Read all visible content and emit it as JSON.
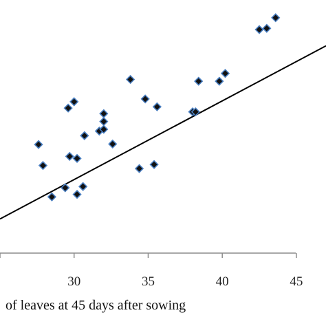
{
  "chart_data": {
    "type": "scatter",
    "xlabel": "of  leaves at 45 days after sowing",
    "ylabel": "",
    "x_ticks": [
      "30",
      "35",
      "40",
      "45"
    ],
    "xlim": [
      25,
      47
    ],
    "ylim": [
      0,
      100
    ],
    "grid": false,
    "marker_color": "#111111",
    "marker_edge_color": "#4a7fc1",
    "trend_color": "#000000",
    "trendline": {
      "x_start": 25,
      "y_start": 13.5,
      "x_end": 47,
      "y_end": 81.9
    },
    "series": [
      {
        "points": [
          [
            27.6,
            42.9
          ],
          [
            27.9,
            34.6
          ],
          [
            28.5,
            22.2
          ],
          [
            29.4,
            25.8
          ],
          [
            29.6,
            57.3
          ],
          [
            29.7,
            38.2
          ],
          [
            30.0,
            59.8
          ],
          [
            30.2,
            23.2
          ],
          [
            30.2,
            37.4
          ],
          [
            30.6,
            26.3
          ],
          [
            30.7,
            46.4
          ],
          [
            31.7,
            48.2
          ],
          [
            32.0,
            48.9
          ],
          [
            32.0,
            52.0
          ],
          [
            32.0,
            55.1
          ],
          [
            32.6,
            43.1
          ],
          [
            33.8,
            68.6
          ],
          [
            34.4,
            33.4
          ],
          [
            34.8,
            60.9
          ],
          [
            35.4,
            35.0
          ],
          [
            35.6,
            57.8
          ],
          [
            38.0,
            55.8
          ],
          [
            38.2,
            55.8
          ],
          [
            38.4,
            67.9
          ],
          [
            39.8,
            67.9
          ],
          [
            40.2,
            71.0
          ],
          [
            42.5,
            88.3
          ],
          [
            43.0,
            88.8
          ],
          [
            43.6,
            93.0
          ]
        ]
      }
    ]
  }
}
